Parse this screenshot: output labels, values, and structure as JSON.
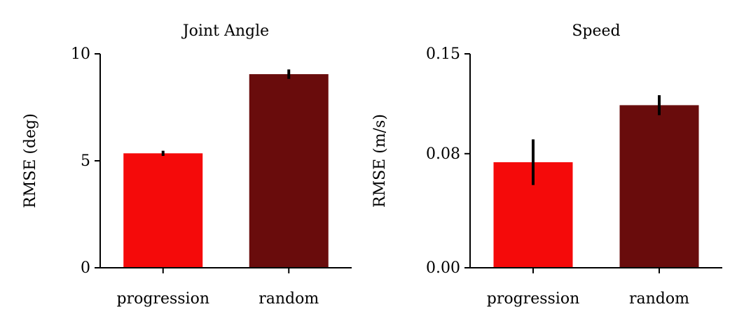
{
  "chart_data": [
    {
      "type": "bar",
      "title": "Joint Angle",
      "ylabel": "RMSE (deg)",
      "xlabel": "",
      "categories": [
        "progression",
        "random"
      ],
      "values": [
        5.35,
        9.05
      ],
      "errors": [
        0.12,
        0.22
      ],
      "colors": [
        "#f50a0a",
        "#690c0c"
      ],
      "ylim": [
        0,
        10
      ],
      "yticks": [
        0,
        5,
        10
      ],
      "ytick_labels": [
        "0",
        "5",
        "10"
      ],
      "grid": false
    },
    {
      "type": "bar",
      "title": "Speed",
      "ylabel": "RMSE (m/s)",
      "xlabel": "",
      "categories": [
        "progression",
        "random"
      ],
      "values": [
        0.074,
        0.114
      ],
      "errors": [
        0.016,
        0.007
      ],
      "colors": [
        "#f50a0a",
        "#690c0c"
      ],
      "ylim": [
        0,
        0.15
      ],
      "yticks": [
        0,
        0.08,
        0.15
      ],
      "ytick_labels": [
        "0.00",
        "0.08",
        "0.15"
      ],
      "grid": false
    }
  ]
}
